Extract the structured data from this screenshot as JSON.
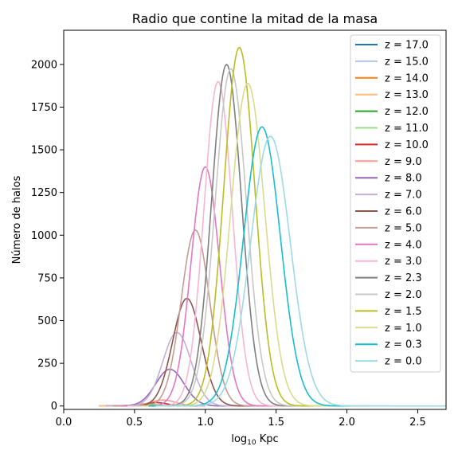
{
  "chart_data": {
    "type": "line",
    "title": "Radio que contine la mitad de la masa",
    "xlabel_main": "log",
    "xlabel_sub": "10",
    "xlabel_tail": " Kpc",
    "ylabel": "Número de halos",
    "xlim": [
      0.0,
      2.7
    ],
    "ylim": [
      -20,
      2200
    ],
    "xticks": [
      0.0,
      0.5,
      1.0,
      1.5,
      2.0,
      2.5
    ],
    "xtick_labels": [
      "0.0",
      "0.5",
      "1.0",
      "1.5",
      "2.0",
      "2.5"
    ],
    "yticks": [
      0,
      250,
      500,
      750,
      1000,
      1250,
      1500,
      1750,
      2000
    ],
    "ytick_labels": [
      "0",
      "250",
      "500",
      "750",
      "1000",
      "1250",
      "1500",
      "1750",
      "2000"
    ],
    "legend_position": "top-right",
    "series": [
      {
        "name": "z = 17.0",
        "color": "#1f77b4",
        "x_range": [
          0.25,
          0.6
        ],
        "peak": {
          "x": 0.45,
          "y": 1
        },
        "width": 0.05
      },
      {
        "name": "z = 15.0",
        "color": "#aec7e8",
        "x_range": [
          0.25,
          0.65
        ],
        "peak": {
          "x": 0.48,
          "y": 2
        },
        "width": 0.06
      },
      {
        "name": "z = 14.0",
        "color": "#ff7f0e",
        "x_range": [
          0.25,
          0.7
        ],
        "peak": {
          "x": 0.5,
          "y": 4
        },
        "width": 0.07
      },
      {
        "name": "z = 13.0",
        "color": "#ffbb78",
        "x_range": [
          0.25,
          0.75
        ],
        "peak": {
          "x": 0.52,
          "y": 6
        },
        "width": 0.07
      },
      {
        "name": "z = 12.0",
        "color": "#2ca02c",
        "x_range": [
          0.3,
          0.8
        ],
        "peak": {
          "x": 0.55,
          "y": 9
        },
        "width": 0.07
      },
      {
        "name": "z = 11.0",
        "color": "#98df8a",
        "x_range": [
          0.3,
          0.85
        ],
        "peak": {
          "x": 0.58,
          "y": 13
        },
        "width": 0.08
      },
      {
        "name": "z = 10.0",
        "color": "#d62728",
        "x_range": [
          0.3,
          0.95
        ],
        "peak": {
          "x": 0.65,
          "y": 20
        },
        "width": 0.08
      },
      {
        "name": "z = 9.0",
        "color": "#ff9896",
        "x_range": [
          0.3,
          1.0
        ],
        "peak": {
          "x": 0.7,
          "y": 35
        },
        "width": 0.09
      },
      {
        "name": "z = 8.0",
        "color": "#9467bd",
        "x_range": [
          0.3,
          1.15
        ],
        "peak": {
          "x": 0.75,
          "y": 215
        },
        "width": 0.1
      },
      {
        "name": "z = 7.0",
        "color": "#c5b0d5",
        "x_range": [
          0.3,
          1.25
        ],
        "peak": {
          "x": 0.8,
          "y": 430
        },
        "width": 0.1
      },
      {
        "name": "z = 6.0",
        "color": "#8c564b",
        "x_range": [
          0.35,
          1.35
        ],
        "peak": {
          "x": 0.87,
          "y": 630
        },
        "width": 0.1
      },
      {
        "name": "z = 5.0",
        "color": "#c49c94",
        "x_range": [
          0.35,
          1.45
        ],
        "peak": {
          "x": 0.93,
          "y": 1030
        },
        "width": 0.1
      },
      {
        "name": "z = 4.0",
        "color": "#e377c2",
        "x_range": [
          0.4,
          1.6
        ],
        "peak": {
          "x": 1.0,
          "y": 1400
        },
        "width": 0.1
      },
      {
        "name": "z = 3.0",
        "color": "#f7b6d2",
        "x_range": [
          0.45,
          1.7
        ],
        "peak": {
          "x": 1.09,
          "y": 1900
        },
        "width": 0.1
      },
      {
        "name": "z = 2.3",
        "color": "#7f7f7f",
        "x_range": [
          0.5,
          1.8
        ],
        "peak": {
          "x": 1.15,
          "y": 2000
        },
        "width": 0.105
      },
      {
        "name": "z = 2.0",
        "color": "#c7c7c7",
        "x_range": [
          0.5,
          1.9
        ],
        "peak": {
          "x": 1.18,
          "y": 1975
        },
        "width": 0.11
      },
      {
        "name": "z = 1.5",
        "color": "#bcbd22",
        "x_range": [
          0.55,
          2.0
        ],
        "peak": {
          "x": 1.24,
          "y": 2100
        },
        "width": 0.11
      },
      {
        "name": "z = 1.0",
        "color": "#dbdb8d",
        "x_range": [
          0.55,
          2.15
        ],
        "peak": {
          "x": 1.3,
          "y": 1890
        },
        "width": 0.12
      },
      {
        "name": "z = 0.3",
        "color": "#17becf",
        "x_range": [
          0.6,
          2.3
        ],
        "peak": {
          "x": 1.4,
          "y": 1635
        },
        "width": 0.13
      },
      {
        "name": "z = 0.0",
        "color": "#9edae5",
        "x_range": [
          0.65,
          2.7
        ],
        "peak": {
          "x": 1.46,
          "y": 1580
        },
        "width": 0.14
      }
    ]
  }
}
